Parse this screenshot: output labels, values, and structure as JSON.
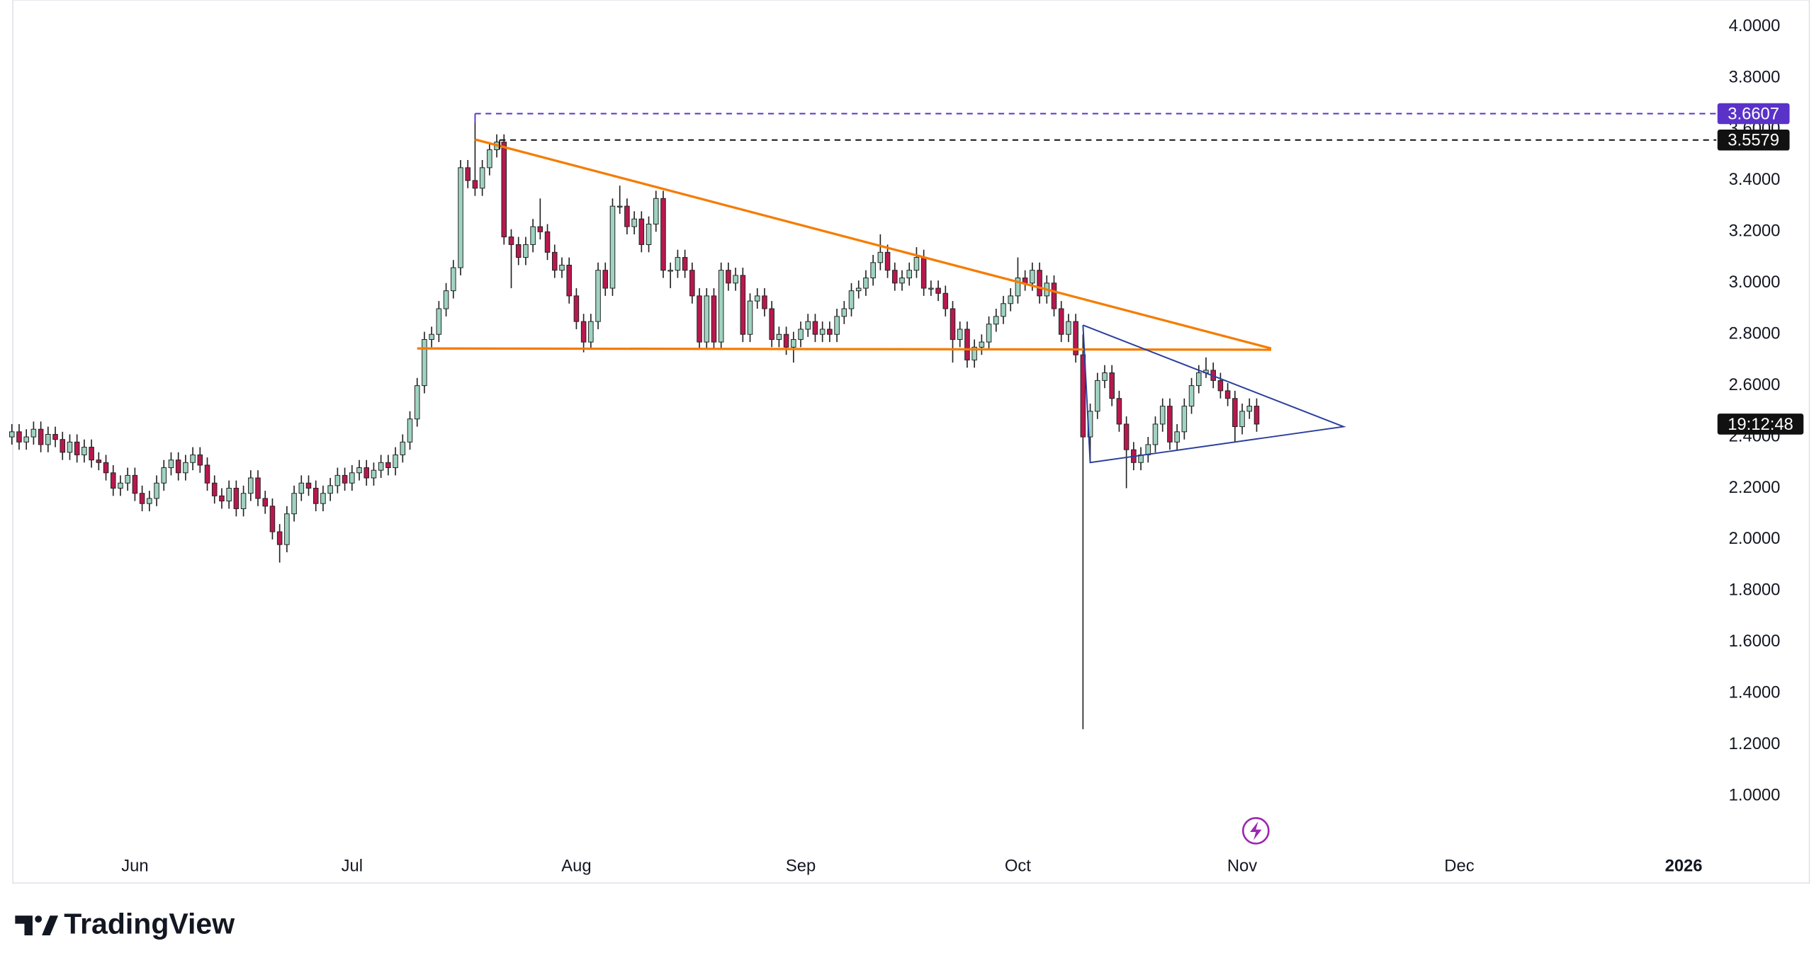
{
  "chart_data": {
    "type": "candlestick",
    "xlim": [
      0,
      235.35
    ],
    "ylim": [
      0.66,
      4.104
    ],
    "xticks": [
      {
        "value": 17,
        "label": "Jun"
      },
      {
        "value": 47,
        "label": "Jul"
      },
      {
        "value": 78,
        "label": "Aug"
      },
      {
        "value": 109,
        "label": "Sep"
      },
      {
        "value": 139,
        "label": "Oct"
      },
      {
        "value": 170,
        "label": "Nov"
      },
      {
        "value": 200,
        "label": "Dec"
      },
      {
        "value": 231,
        "label": "2026"
      }
    ],
    "yticks": [
      {
        "value": 1.0,
        "label": "1.0000"
      },
      {
        "value": 1.2,
        "label": "1.2000"
      },
      {
        "value": 1.4,
        "label": "1.4000"
      },
      {
        "value": 1.6,
        "label": "1.6000"
      },
      {
        "value": 1.8,
        "label": "1.8000"
      },
      {
        "value": 2.0,
        "label": "2.0000"
      },
      {
        "value": 2.2,
        "label": "2.2000"
      },
      {
        "value": 2.4,
        "label": "2.4000"
      },
      {
        "value": 2.6,
        "label": "2.6000"
      },
      {
        "value": 2.8,
        "label": "2.8000"
      },
      {
        "value": 3.0,
        "label": "3.0000"
      },
      {
        "value": 3.2,
        "label": "3.2000"
      },
      {
        "value": 3.4,
        "label": "3.4000"
      },
      {
        "value": 3.6,
        "label": "3.6000"
      },
      {
        "value": 3.8,
        "label": "3.8000"
      },
      {
        "value": 4.0,
        "label": "4.0000"
      }
    ],
    "up_color": "#9fd3c0",
    "down_color": "#b8184f",
    "wick_color": "#222222",
    "open": [
      2.4,
      2.42,
      2.38,
      2.4,
      2.43,
      2.37,
      2.41,
      2.39,
      2.34,
      2.38,
      2.33,
      2.36,
      2.31,
      2.3,
      2.26,
      2.2,
      2.22,
      2.25,
      2.18,
      2.14,
      2.16,
      2.22,
      2.28,
      2.31,
      2.26,
      2.3,
      2.33,
      2.29,
      2.22,
      2.17,
      2.15,
      2.2,
      2.12,
      2.18,
      2.24,
      2.16,
      2.13,
      2.03,
      1.98,
      2.1,
      2.18,
      2.22,
      2.2,
      2.14,
      2.18,
      2.21,
      2.25,
      2.22,
      2.26,
      2.28,
      2.24,
      2.27,
      2.3,
      2.28,
      2.33,
      2.38,
      2.47,
      2.6,
      2.78,
      2.8,
      2.9,
      2.97,
      3.06,
      3.45,
      3.4,
      3.37,
      3.45,
      3.52,
      3.55,
      3.18,
      3.15,
      3.1,
      3.15,
      3.22,
      3.2,
      3.12,
      3.05,
      3.07,
      2.95,
      2.85,
      2.77,
      2.85,
      3.05,
      2.98,
      3.3,
      3.3,
      3.22,
      3.25,
      3.15,
      3.23,
      3.33,
      3.05,
      3.05,
      3.1,
      3.05,
      2.95,
      2.77,
      2.95,
      2.77,
      3.05,
      3.0,
      3.03,
      2.8,
      2.93,
      2.95,
      2.9,
      2.78,
      2.8,
      2.75,
      2.78,
      2.82,
      2.85,
      2.8,
      2.82,
      2.8,
      2.87,
      2.9,
      2.97,
      2.98,
      3.02,
      3.08,
      3.12,
      3.05,
      3.0,
      3.02,
      3.05,
      3.1,
      2.98,
      2.98,
      2.96,
      2.9,
      2.78,
      2.82,
      2.7,
      2.75,
      2.77,
      2.84,
      2.87,
      2.92,
      2.95,
      3.02,
      3.0,
      3.05,
      2.95,
      3.0,
      2.9,
      2.8,
      2.85,
      2.72,
      2.4,
      2.5,
      2.62,
      2.65,
      2.55,
      2.45,
      2.35,
      2.3,
      2.33,
      2.37,
      2.45,
      2.52,
      2.38,
      2.42,
      2.52,
      2.6,
      2.65,
      2.66,
      2.62,
      2.58,
      2.55,
      2.44,
      2.5,
      2.52
    ],
    "high": [
      2.45,
      2.45,
      2.43,
      2.46,
      2.46,
      2.44,
      2.44,
      2.42,
      2.41,
      2.41,
      2.39,
      2.39,
      2.34,
      2.33,
      2.29,
      2.25,
      2.28,
      2.28,
      2.21,
      2.19,
      2.25,
      2.31,
      2.34,
      2.34,
      2.33,
      2.36,
      2.36,
      2.32,
      2.25,
      2.2,
      2.23,
      2.23,
      2.21,
      2.27,
      2.27,
      2.19,
      2.16,
      2.06,
      2.13,
      2.21,
      2.25,
      2.25,
      2.23,
      2.21,
      2.24,
      2.28,
      2.28,
      2.29,
      2.31,
      2.31,
      2.3,
      2.33,
      2.33,
      2.36,
      2.41,
      2.5,
      2.63,
      2.81,
      2.83,
      2.93,
      3.0,
      3.09,
      3.48,
      3.48,
      3.6607,
      3.48,
      3.55,
      3.58,
      3.58,
      3.21,
      3.18,
      3.18,
      3.25,
      3.33,
      3.23,
      3.15,
      3.1,
      3.1,
      2.98,
      2.88,
      2.88,
      3.08,
      3.08,
      3.33,
      3.38,
      3.33,
      3.28,
      3.28,
      3.26,
      3.36,
      3.36,
      3.08,
      3.13,
      3.13,
      3.08,
      2.98,
      2.98,
      2.98,
      3.08,
      3.08,
      3.06,
      3.06,
      2.96,
      2.98,
      2.98,
      2.93,
      2.83,
      2.83,
      2.81,
      2.85,
      2.88,
      2.88,
      2.85,
      2.85,
      2.9,
      2.93,
      3.0,
      3.01,
      3.05,
      3.11,
      3.19,
      3.15,
      3.08,
      3.05,
      3.08,
      3.14,
      3.13,
      3.01,
      3.01,
      2.99,
      2.93,
      2.85,
      2.85,
      2.78,
      2.8,
      2.87,
      2.9,
      2.95,
      2.98,
      3.1,
      3.05,
      3.08,
      3.08,
      3.03,
      3.03,
      2.93,
      2.88,
      2.88,
      2.8,
      2.53,
      2.65,
      2.68,
      2.68,
      2.58,
      2.48,
      2.38,
      2.36,
      2.4,
      2.48,
      2.55,
      2.55,
      2.45,
      2.55,
      2.63,
      2.68,
      2.71,
      2.69,
      2.65,
      2.61,
      2.58,
      2.53,
      2.55,
      2.55
    ],
    "low": [
      2.37,
      2.35,
      2.35,
      2.37,
      2.34,
      2.34,
      2.36,
      2.31,
      2.31,
      2.3,
      2.3,
      2.28,
      2.27,
      2.23,
      2.17,
      2.17,
      2.19,
      2.15,
      2.11,
      2.11,
      2.13,
      2.19,
      2.25,
      2.23,
      2.23,
      2.27,
      2.26,
      2.19,
      2.14,
      2.12,
      2.12,
      2.09,
      2.09,
      2.15,
      2.13,
      2.1,
      2.0,
      1.91,
      1.95,
      2.07,
      2.15,
      2.17,
      2.11,
      2.11,
      2.15,
      2.18,
      2.19,
      2.19,
      2.23,
      2.21,
      2.21,
      2.24,
      2.25,
      2.25,
      2.3,
      2.35,
      2.44,
      2.57,
      2.75,
      2.77,
      2.87,
      2.94,
      3.03,
      3.37,
      3.34,
      3.34,
      3.42,
      3.49,
      3.15,
      2.98,
      3.07,
      3.07,
      3.12,
      3.17,
      3.09,
      3.02,
      3.02,
      2.92,
      2.82,
      2.73,
      2.74,
      2.82,
      2.95,
      2.95,
      3.27,
      3.19,
      3.19,
      3.12,
      3.12,
      3.2,
      3.02,
      2.98,
      3.02,
      3.02,
      2.92,
      2.74,
      2.74,
      2.74,
      2.74,
      2.97,
      2.97,
      2.77,
      2.77,
      2.9,
      2.87,
      2.75,
      2.75,
      2.72,
      2.69,
      2.75,
      2.79,
      2.77,
      2.77,
      2.77,
      2.77,
      2.84,
      2.87,
      2.94,
      2.95,
      2.99,
      3.05,
      3.02,
      2.97,
      2.97,
      2.99,
      3.02,
      2.95,
      2.95,
      2.93,
      2.87,
      2.69,
      2.75,
      2.67,
      2.67,
      2.72,
      2.74,
      2.81,
      2.84,
      2.89,
      2.92,
      2.97,
      2.97,
      2.92,
      2.92,
      2.87,
      2.77,
      2.77,
      2.69,
      1.26,
      2.31,
      2.47,
      2.59,
      2.52,
      2.42,
      2.2,
      2.27,
      2.27,
      2.3,
      2.34,
      2.42,
      2.35,
      2.35,
      2.39,
      2.49,
      2.57,
      2.63,
      2.59,
      2.55,
      2.52,
      2.38,
      2.41,
      2.47,
      2.42
    ],
    "close": [
      2.42,
      2.38,
      2.4,
      2.43,
      2.37,
      2.41,
      2.39,
      2.34,
      2.38,
      2.33,
      2.36,
      2.31,
      2.3,
      2.26,
      2.2,
      2.22,
      2.25,
      2.18,
      2.14,
      2.16,
      2.22,
      2.28,
      2.31,
      2.26,
      2.3,
      2.33,
      2.29,
      2.22,
      2.17,
      2.15,
      2.2,
      2.12,
      2.18,
      2.24,
      2.16,
      2.13,
      2.03,
      1.98,
      2.1,
      2.18,
      2.22,
      2.2,
      2.14,
      2.18,
      2.21,
      2.25,
      2.22,
      2.26,
      2.28,
      2.24,
      2.27,
      2.3,
      2.28,
      2.33,
      2.38,
      2.47,
      2.6,
      2.78,
      2.8,
      2.9,
      2.97,
      3.06,
      3.45,
      3.4,
      3.37,
      3.45,
      3.52,
      3.55,
      3.18,
      3.15,
      3.1,
      3.15,
      3.22,
      3.2,
      3.12,
      3.05,
      3.07,
      2.95,
      2.85,
      2.77,
      2.85,
      3.05,
      2.98,
      3.3,
      3.3,
      3.22,
      3.25,
      3.15,
      3.23,
      3.33,
      3.05,
      3.05,
      3.1,
      3.05,
      2.95,
      2.77,
      2.95,
      2.77,
      3.05,
      3.0,
      3.03,
      2.8,
      2.93,
      2.95,
      2.9,
      2.78,
      2.8,
      2.75,
      2.78,
      2.82,
      2.85,
      2.8,
      2.82,
      2.8,
      2.87,
      2.9,
      2.97,
      2.98,
      3.02,
      3.08,
      3.12,
      3.05,
      3.0,
      3.02,
      3.05,
      3.1,
      2.98,
      2.98,
      2.96,
      2.9,
      2.78,
      2.82,
      2.7,
      2.75,
      2.77,
      2.84,
      2.87,
      2.92,
      2.95,
      3.02,
      3.0,
      3.05,
      2.95,
      3.0,
      2.9,
      2.8,
      2.85,
      2.72,
      2.4,
      2.5,
      2.62,
      2.65,
      2.55,
      2.45,
      2.35,
      2.3,
      2.33,
      2.37,
      2.45,
      2.52,
      2.38,
      2.42,
      2.52,
      2.6,
      2.65,
      2.66,
      2.62,
      2.58,
      2.55,
      2.44,
      2.5,
      2.52,
      2.45
    ],
    "drawings": [
      {
        "color": "#f57c00",
        "x": [
          64,
          174
        ],
        "y": [
          3.56,
          2.745
        ]
      },
      {
        "color": "#f57c00",
        "x": [
          56,
          174
        ],
        "y": [
          2.745,
          2.74
        ]
      },
      {
        "color": "#2a3f9d",
        "x": [
          148,
          184,
          149,
          148
        ],
        "y": [
          2.836,
          2.44,
          2.3,
          2.836
        ]
      }
    ],
    "price_lines": [
      {
        "value": 3.6607,
        "start": 64,
        "color": "#5a32c8"
      },
      {
        "value": 3.5579,
        "start": 67.4,
        "color": "#111111"
      }
    ],
    "countdown": "19:12:48",
    "logo": "TradingView"
  }
}
